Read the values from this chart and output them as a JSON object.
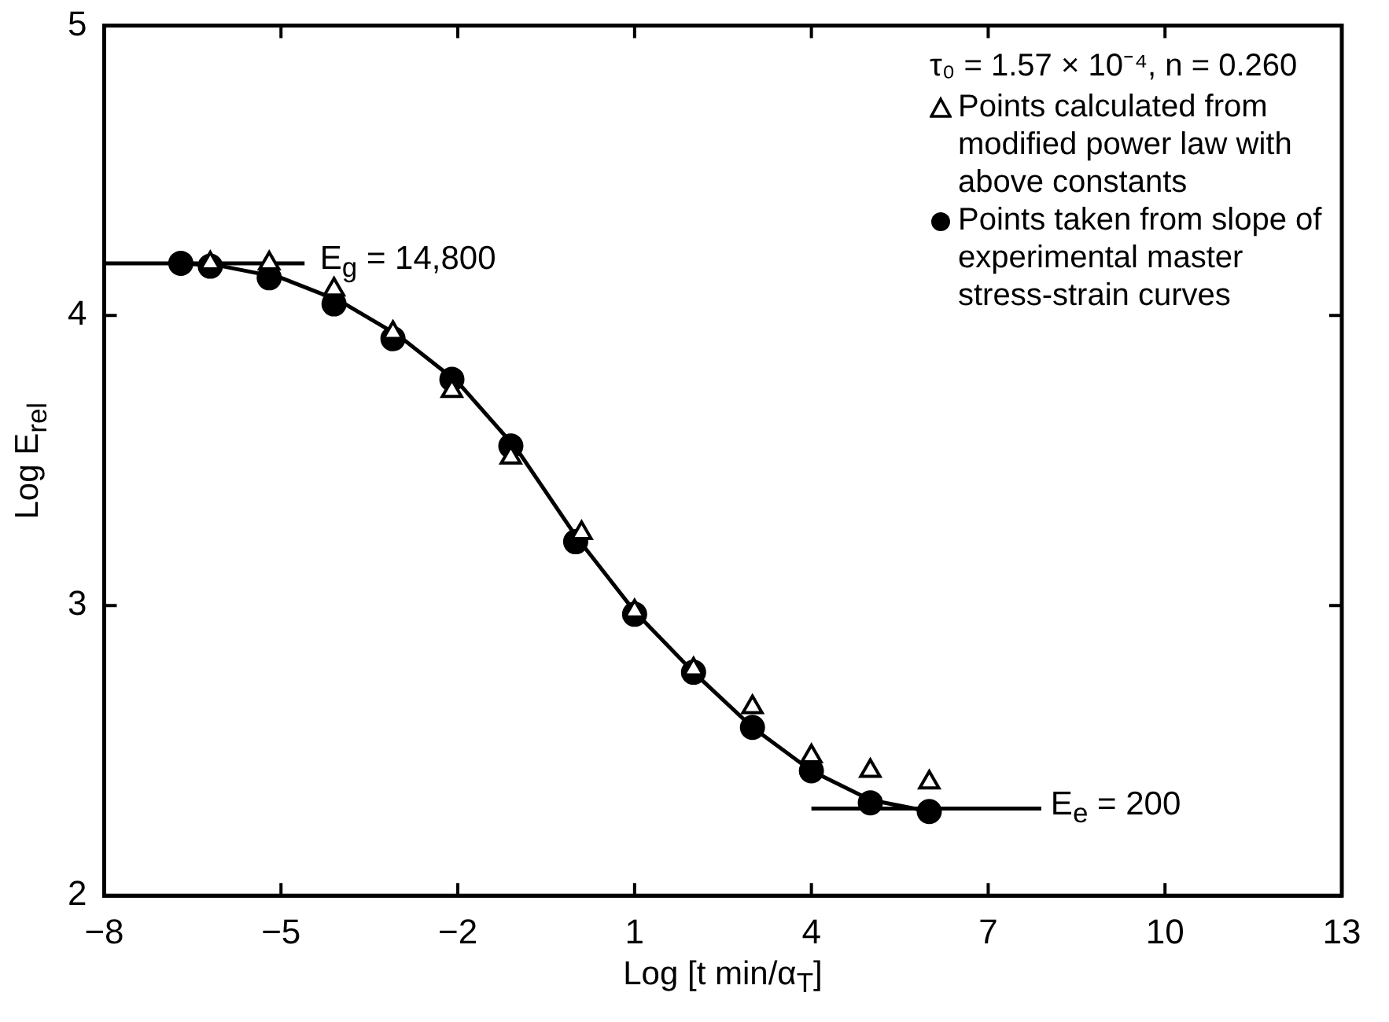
{
  "chart_data": {
    "type": "scatter",
    "xlabel": "Log [t min/α$_{T}$]",
    "ylabel": "Log E$_{rel}$",
    "legend_title": "τ₀ = 1.57 × 10⁻⁴, n = 0.260",
    "xlim": [
      -8,
      13
    ],
    "xticks": [
      -8,
      -5,
      -2,
      1,
      4,
      7,
      10,
      13
    ],
    "ylim": [
      2,
      5
    ],
    "yticks": [
      2,
      3,
      4,
      5
    ],
    "legend": "top right",
    "annotations": [
      {
        "text": "E$_{g}$ = 14,800",
        "x": -4.5,
        "y": 4.18
      },
      {
        "text": "E$_{e}$ = 200",
        "x": 7.9,
        "y": 2.3
      }
    ],
    "series": [
      {
        "name": "Points calculated from modified power law with above constants",
        "type": "scatter",
        "marker": "triangle",
        "color": "#000000",
        "x": [
          -6.2,
          -5.2,
          -4.1,
          -3.1,
          -2.1,
          -1.1,
          0.1,
          1,
          2,
          3,
          4,
          5,
          6
        ],
        "values": [
          4.18,
          4.18,
          4.09,
          3.94,
          3.74,
          3.51,
          3.25,
          2.98,
          2.78,
          2.65,
          2.48,
          2.43,
          2.39
        ]
      },
      {
        "name": "Points taken from slope of experimental master stress-strain curves",
        "type": "scatter",
        "marker": "circle",
        "color": "#000000",
        "x": [
          -6.7,
          -6.2,
          -5.2,
          -4.1,
          -3.1,
          -2.1,
          -1.1,
          0,
          1,
          2,
          3,
          4,
          5,
          6
        ],
        "values": [
          4.18,
          4.17,
          4.13,
          4.04,
          3.92,
          3.78,
          3.55,
          3.22,
          2.97,
          2.77,
          2.58,
          2.43,
          2.32,
          2.29
        ]
      },
      {
        "type": "line",
        "marker": "none",
        "color": "#000000",
        "x": [
          -8,
          -6.7,
          -6,
          -5,
          -4,
          -3,
          -2,
          -1,
          0,
          1,
          2,
          3,
          4,
          5,
          6
        ],
        "values": [
          4.18,
          4.18,
          4.17,
          4.13,
          4.05,
          3.93,
          3.77,
          3.54,
          3.24,
          2.98,
          2.77,
          2.58,
          2.43,
          2.33,
          2.29
        ]
      },
      {
        "type": "line",
        "marker": "none",
        "color": "#000000",
        "x": [
          -6.5,
          -4.6
        ],
        "values": [
          4.18,
          4.18
        ]
      },
      {
        "type": "line",
        "marker": "none",
        "color": "#000000",
        "x": [
          4,
          7.9
        ],
        "values": [
          2.3,
          2.3
        ]
      }
    ]
  }
}
